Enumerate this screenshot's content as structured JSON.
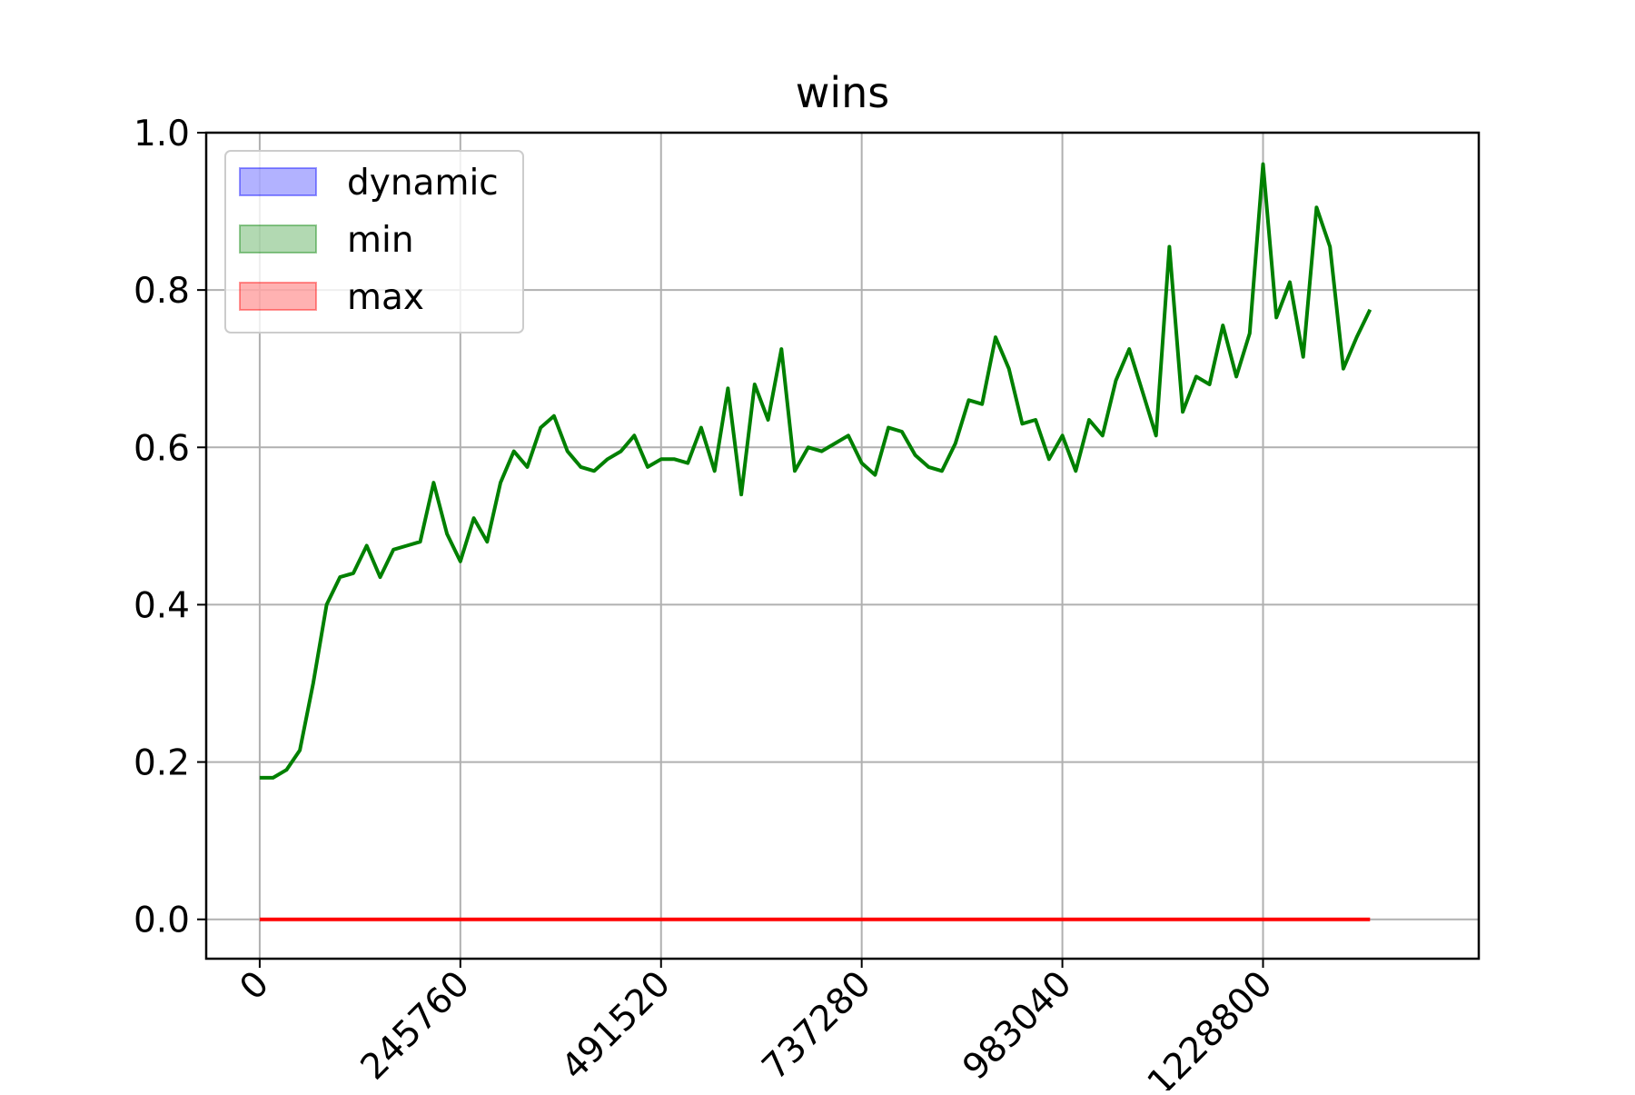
{
  "chart_data": {
    "type": "line",
    "title": "wins",
    "xlabel": "",
    "ylabel": "",
    "xlim": [
      -65536,
      1492992
    ],
    "ylim": [
      -0.05,
      1.0
    ],
    "grid": true,
    "legend_position": "top-left",
    "x_ticks": [
      0,
      245760,
      491520,
      737280,
      983040,
      1228800
    ],
    "x_tick_labels": [
      "0",
      "245760",
      "491520",
      "737280",
      "983040",
      "1228800"
    ],
    "y_ticks": [
      0.0,
      0.2,
      0.4,
      0.6,
      0.8,
      1.0
    ],
    "y_tick_labels": [
      "0.0",
      "0.2",
      "0.4",
      "0.6",
      "0.8",
      "1.0"
    ],
    "legend": [
      {
        "label": "dynamic",
        "color": "#0000ff"
      },
      {
        "label": "min",
        "color": "#008000"
      },
      {
        "label": "max",
        "color": "#ff0000"
      }
    ],
    "series": [
      {
        "color": "#008000",
        "x": [
          0,
          16384,
          32768,
          49152,
          65536,
          81920,
          98304,
          114688,
          131072,
          147456,
          163840,
          180224,
          196608,
          212992,
          229376,
          245760,
          262144,
          278528,
          294912,
          311296,
          327680,
          344064,
          360448,
          376832,
          393216,
          409600,
          425984,
          442368,
          458752,
          475136,
          491520,
          507904,
          524288,
          540672,
          557056,
          573440,
          589824,
          606208,
          622592,
          638976,
          655360,
          671744,
          688128,
          704512,
          720896,
          737280,
          753664,
          770048,
          786432,
          802816,
          819200,
          835584,
          851968,
          868352,
          884736,
          901120,
          917504,
          933888,
          950272,
          966656,
          983040,
          999424,
          1015808,
          1032192,
          1048576,
          1064960,
          1081344,
          1097728,
          1114112,
          1130496,
          1146880,
          1163264,
          1179648,
          1196032,
          1212416,
          1228800,
          1245184,
          1261568,
          1277952,
          1294336,
          1310720,
          1327104,
          1343488,
          1359872
        ],
        "y": [
          0.18,
          0.18,
          0.19,
          0.215,
          0.3,
          0.4,
          0.435,
          0.44,
          0.475,
          0.435,
          0.47,
          0.475,
          0.48,
          0.555,
          0.49,
          0.455,
          0.51,
          0.48,
          0.555,
          0.595,
          0.575,
          0.625,
          0.64,
          0.595,
          0.575,
          0.57,
          0.585,
          0.595,
          0.615,
          0.575,
          0.585,
          0.585,
          0.58,
          0.625,
          0.57,
          0.675,
          0.54,
          0.68,
          0.635,
          0.725,
          0.57,
          0.6,
          0.595,
          0.605,
          0.615,
          0.58,
          0.565,
          0.625,
          0.62,
          0.59,
          0.575,
          0.57,
          0.605,
          0.66,
          0.655,
          0.74,
          0.7,
          0.63,
          0.635,
          0.585,
          0.615,
          0.57,
          0.635,
          0.615,
          0.685,
          0.725,
          0.67,
          0.615,
          0.855,
          0.645,
          0.69,
          0.68,
          0.755,
          0.69,
          0.745,
          0.96,
          0.765,
          0.81,
          0.715,
          0.905,
          0.855,
          0.7,
          0.74,
          0.775
        ]
      },
      {
        "color": "#ff0000",
        "x": [
          0,
          1359872
        ],
        "y": [
          0.0,
          0.0
        ]
      }
    ]
  }
}
